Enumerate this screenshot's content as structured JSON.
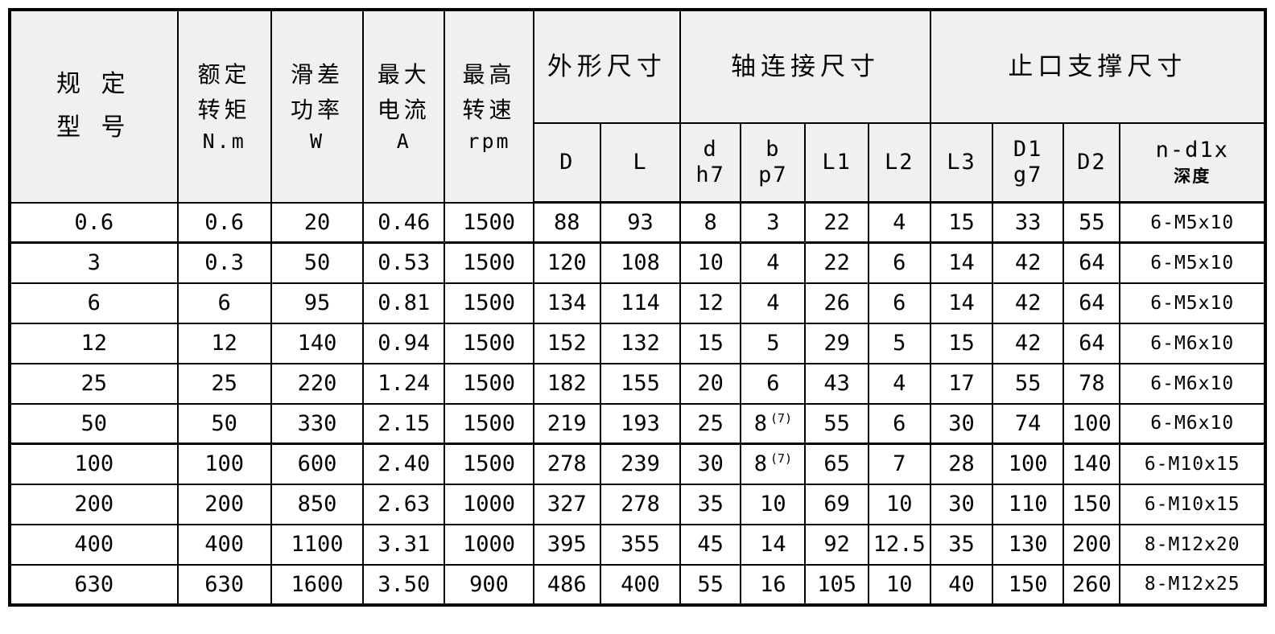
{
  "colors": {
    "header_bg": "#f0f0ee",
    "border": "#000000",
    "cell_bg": "#ffffff",
    "text": "#000000"
  },
  "chart_data": {
    "type": "table",
    "title": "",
    "header": {
      "model": {
        "line1": "规 定",
        "line2": "型 号"
      },
      "simple": [
        {
          "line1": "额定",
          "line2": "转矩",
          "unit": "N.m"
        },
        {
          "line1": "滑差",
          "line2": "功率",
          "unit": "W"
        },
        {
          "line1": "最大",
          "line2": "电流",
          "unit": "A"
        },
        {
          "line1": "最高",
          "line2": "转速",
          "unit": "rpm"
        }
      ],
      "groups": [
        {
          "label": "外形尺寸",
          "span": 2
        },
        {
          "label": "轴连接尺寸",
          "span": 4
        },
        {
          "label": "止口支撑尺寸",
          "span": 4
        }
      ],
      "sub": [
        {
          "line1": "D"
        },
        {
          "line1": "L"
        },
        {
          "line1": "d",
          "line2": "h7"
        },
        {
          "line1": "b",
          "line2": "p7"
        },
        {
          "line1": "L1"
        },
        {
          "line1": "L2"
        },
        {
          "line1": "L3"
        },
        {
          "line1": "D1",
          "line2": "g7"
        },
        {
          "line1": "D2"
        },
        {
          "line1": "n-d1x",
          "line2_cn": "深度"
        }
      ]
    },
    "columns_flat": [
      "规定型号",
      "额定转矩 N.m",
      "滑差功率 W",
      "最大电流 A",
      "最高转速 rpm",
      "D",
      "L",
      "d h7",
      "b p7",
      "L1",
      "L2",
      "L3",
      "D1 g7",
      "D2",
      "n-d1x 深度"
    ],
    "rows": [
      [
        "0.6",
        "0.6",
        "20",
        "0.46",
        "1500",
        "88",
        "93",
        "8",
        "3",
        "22",
        "4",
        "15",
        "33",
        "55",
        "6-M5x10"
      ],
      [
        "3",
        "0.3",
        "50",
        "0.53",
        "1500",
        "120",
        "108",
        "10",
        "4",
        "22",
        "6",
        "14",
        "42",
        "64",
        "6-M5x10"
      ],
      [
        "6",
        "6",
        "95",
        "0.81",
        "1500",
        "134",
        "114",
        "12",
        "4",
        "26",
        "6",
        "14",
        "42",
        "64",
        "6-M5x10"
      ],
      [
        "12",
        "12",
        "140",
        "0.94",
        "1500",
        "152",
        "132",
        "15",
        "5",
        "29",
        "5",
        "15",
        "42",
        "64",
        "6-M6x10"
      ],
      [
        "25",
        "25",
        "220",
        "1.24",
        "1500",
        "182",
        "155",
        "20",
        "6",
        "43",
        "4",
        "17",
        "55",
        "78",
        "6-M6x10"
      ],
      [
        "50",
        "50",
        "330",
        "2.15",
        "1500",
        "219",
        "193",
        "25",
        "8 (7)",
        "55",
        "6",
        "30",
        "74",
        "100",
        "6-M6x10"
      ],
      [
        "100",
        "100",
        "600",
        "2.40",
        "1500",
        "278",
        "239",
        "30",
        "8 (7)",
        "65",
        "7",
        "28",
        "100",
        "140",
        "6-M10x15"
      ],
      [
        "200",
        "200",
        "850",
        "2.63",
        "1000",
        "327",
        "278",
        "35",
        "10",
        "69",
        "10",
        "30",
        "110",
        "150",
        "6-M10x15"
      ],
      [
        "400",
        "400",
        "1100",
        "3.31",
        "1000",
        "395",
        "355",
        "45",
        "14",
        "92",
        "12.5",
        "35",
        "130",
        "200",
        "8-M12x20"
      ],
      [
        "630",
        "630",
        "1600",
        "3.50",
        "900",
        "486",
        "400",
        "55",
        "16",
        "105",
        "10",
        "40",
        "150",
        "260",
        "8-M12x25"
      ]
    ],
    "thick_row_separators_after_row_index": [
      0,
      5
    ]
  }
}
